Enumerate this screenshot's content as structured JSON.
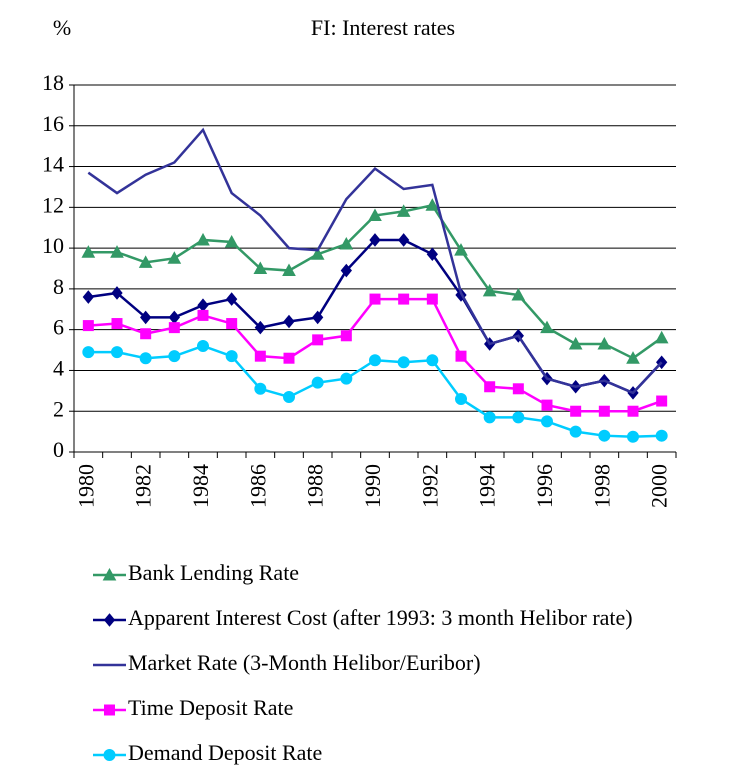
{
  "chart_data": {
    "type": "line",
    "title": "FI: Interest rates",
    "y_unit_label": "%",
    "categories": [
      "1980",
      null,
      "1982",
      null,
      "1984",
      null,
      "1986",
      null,
      "1988",
      null,
      "1990",
      null,
      "1992",
      null,
      "1994",
      null,
      "1996",
      null,
      "1998",
      null,
      "2000"
    ],
    "ylim": [
      0,
      18
    ],
    "yticks": [
      0,
      2,
      4,
      6,
      8,
      10,
      12,
      14,
      16,
      18
    ],
    "grid": true,
    "legend": "bottom",
    "series": [
      {
        "name": "Bank Lending Rate",
        "color": "#339966",
        "marker": "triangle",
        "values": [
          9.8,
          9.8,
          9.3,
          9.5,
          10.4,
          10.3,
          9.0,
          8.9,
          9.7,
          10.2,
          11.6,
          11.8,
          12.1,
          9.9,
          7.9,
          7.7,
          6.1,
          5.3,
          5.3,
          4.6,
          5.6
        ]
      },
      {
        "name": "Apparent Interest Cost (after 1993: 3 month Helibor rate)",
        "color": "#000080",
        "marker": "diamond",
        "values": [
          7.6,
          7.8,
          6.6,
          6.6,
          7.2,
          7.5,
          6.1,
          6.4,
          6.6,
          8.9,
          10.4,
          10.4,
          9.7,
          7.7,
          5.3,
          5.7,
          3.6,
          3.2,
          3.5,
          2.9,
          4.4
        ]
      },
      {
        "name": "Market Rate (3-Month Helibor/Euribor)",
        "color": "#333399",
        "marker": "none",
        "values": [
          13.7,
          12.7,
          13.6,
          14.2,
          15.8,
          12.7,
          11.6,
          10.0,
          9.9,
          12.4,
          13.9,
          12.9,
          13.1,
          7.8,
          5.3,
          5.7,
          3.6,
          3.2,
          3.5,
          2.9,
          4.4
        ]
      },
      {
        "name": "Time Deposit Rate",
        "color": "#ff00ff",
        "marker": "square",
        "values": [
          6.2,
          6.3,
          5.8,
          6.1,
          6.7,
          6.3,
          4.7,
          4.6,
          5.5,
          5.7,
          7.5,
          7.5,
          7.5,
          4.7,
          3.2,
          3.1,
          2.3,
          2.0,
          2.0,
          2.0,
          2.5
        ]
      },
      {
        "name": "Demand Deposit Rate",
        "color": "#00ccff",
        "marker": "circle",
        "values": [
          4.9,
          4.9,
          4.6,
          4.7,
          5.2,
          4.7,
          3.1,
          2.7,
          3.4,
          3.6,
          4.5,
          4.4,
          4.5,
          2.6,
          1.7,
          1.7,
          1.5,
          1.0,
          0.8,
          0.75,
          0.8
        ]
      }
    ]
  }
}
